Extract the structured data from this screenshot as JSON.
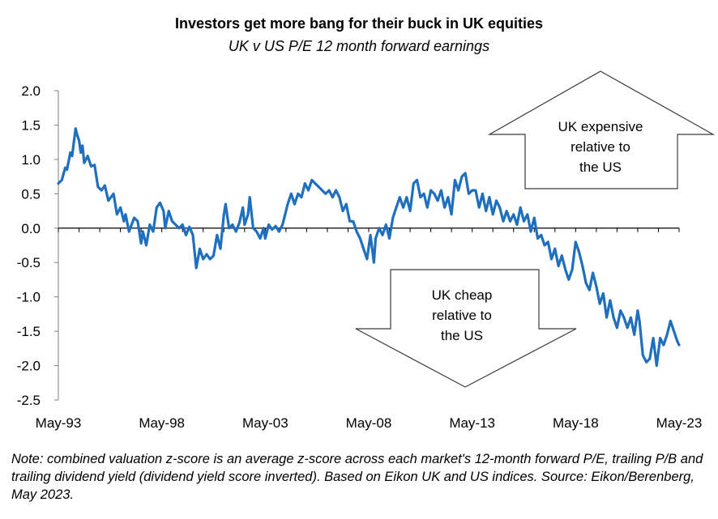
{
  "chart_data": {
    "type": "line",
    "title": "Investors get more bang for their buck in UK equities",
    "subtitle": "UK v US P/E 12 month forward earnings",
    "xlabel": "",
    "ylabel": "",
    "x_range": [
      "1993-05",
      "2023-05"
    ],
    "ylim": [
      -2.5,
      2.0
    ],
    "y_ticks": [
      "2.0",
      "1.5",
      "1.0",
      "0.5",
      "0.0",
      "-0.5",
      "-1.0",
      "-1.5",
      "-2.0",
      "-2.5"
    ],
    "y_tick_values": [
      2.0,
      1.5,
      1.0,
      0.5,
      0.0,
      -0.5,
      -1.0,
      -1.5,
      -2.0,
      -2.5
    ],
    "x_ticks": [
      "May-93",
      "May-98",
      "May-03",
      "May-08",
      "May-13",
      "May-18",
      "May-23"
    ],
    "x_tick_values": [
      "1993-05",
      "1998-05",
      "2003-05",
      "2008-05",
      "2013-05",
      "2018-05",
      "2023-05"
    ],
    "grid": false,
    "line_color": "#1f6fbf",
    "series": [
      {
        "values": [
          [
            "1993-05",
            0.65
          ],
          [
            "1993-07",
            0.7
          ],
          [
            "1993-09",
            0.88
          ],
          [
            "1993-10",
            0.85
          ],
          [
            "1993-12",
            1.1
          ],
          [
            "1994-01",
            1.05
          ],
          [
            "1994-03",
            1.45
          ],
          [
            "1994-04",
            1.35
          ],
          [
            "1994-05",
            1.28
          ],
          [
            "1994-06",
            1.1
          ],
          [
            "1994-07",
            1.2
          ],
          [
            "1994-08",
            0.95
          ],
          [
            "1994-10",
            1.05
          ],
          [
            "1994-12",
            0.9
          ],
          [
            "1995-02",
            0.92
          ],
          [
            "1995-04",
            0.6
          ],
          [
            "1995-06",
            0.55
          ],
          [
            "1995-08",
            0.62
          ],
          [
            "1995-10",
            0.4
          ],
          [
            "1996-01",
            0.5
          ],
          [
            "1996-03",
            0.2
          ],
          [
            "1996-05",
            0.3
          ],
          [
            "1996-07",
            0.1
          ],
          [
            "1996-08",
            0.2
          ],
          [
            "1996-10",
            -0.05
          ],
          [
            "1997-01",
            0.15
          ],
          [
            "1997-03",
            0.1
          ],
          [
            "1997-05",
            -0.22
          ],
          [
            "1997-06",
            -0.05
          ],
          [
            "1997-08",
            -0.25
          ],
          [
            "1997-10",
            0.05
          ],
          [
            "1997-12",
            -0.05
          ],
          [
            "1998-02",
            0.3
          ],
          [
            "1998-04",
            0.37
          ],
          [
            "1998-06",
            0.25
          ],
          [
            "1998-07",
            0.0
          ],
          [
            "1998-09",
            0.25
          ],
          [
            "1998-11",
            0.1
          ],
          [
            "1999-01",
            0.05
          ],
          [
            "1999-03",
            0.0
          ],
          [
            "1999-05",
            0.05
          ],
          [
            "1999-07",
            -0.1
          ],
          [
            "1999-09",
            0.02
          ],
          [
            "1999-11",
            -0.1
          ],
          [
            "2000-01",
            -0.58
          ],
          [
            "2000-03",
            -0.3
          ],
          [
            "2000-05",
            -0.45
          ],
          [
            "2000-07",
            -0.38
          ],
          [
            "2000-09",
            -0.45
          ],
          [
            "2000-11",
            -0.4
          ],
          [
            "2001-01",
            -0.1
          ],
          [
            "2001-03",
            -0.3
          ],
          [
            "2001-05",
            0.2
          ],
          [
            "2001-06",
            0.35
          ],
          [
            "2001-08",
            0.0
          ],
          [
            "2001-10",
            0.05
          ],
          [
            "2001-12",
            -0.05
          ],
          [
            "2002-02",
            0.08
          ],
          [
            "2002-04",
            0.3
          ],
          [
            "2002-05",
            0.05
          ],
          [
            "2002-07",
            0.2
          ],
          [
            "2002-08",
            0.45
          ],
          [
            "2002-10",
            0.0
          ],
          [
            "2002-12",
            -0.05
          ],
          [
            "2003-02",
            -0.15
          ],
          [
            "2003-04",
            0.0
          ],
          [
            "2003-05",
            -0.15
          ],
          [
            "2003-07",
            0.05
          ],
          [
            "2003-09",
            -0.02
          ],
          [
            "2003-11",
            0.03
          ],
          [
            "2004-01",
            -0.05
          ],
          [
            "2004-03",
            0.05
          ],
          [
            "2004-05",
            0.25
          ],
          [
            "2004-06",
            0.35
          ],
          [
            "2004-08",
            0.5
          ],
          [
            "2004-10",
            0.35
          ],
          [
            "2004-12",
            0.5
          ],
          [
            "2005-02",
            0.45
          ],
          [
            "2005-04",
            0.65
          ],
          [
            "2005-06",
            0.55
          ],
          [
            "2005-08",
            0.7
          ],
          [
            "2005-10",
            0.65
          ],
          [
            "2005-12",
            0.6
          ],
          [
            "2006-02",
            0.55
          ],
          [
            "2006-04",
            0.5
          ],
          [
            "2006-06",
            0.55
          ],
          [
            "2006-08",
            0.45
          ],
          [
            "2006-10",
            0.55
          ],
          [
            "2006-12",
            0.45
          ],
          [
            "2007-02",
            0.25
          ],
          [
            "2007-04",
            0.35
          ],
          [
            "2007-06",
            0.1
          ],
          [
            "2007-08",
            0.1
          ],
          [
            "2007-10",
            -0.05
          ],
          [
            "2007-12",
            -0.15
          ],
          [
            "2008-02",
            -0.3
          ],
          [
            "2008-04",
            -0.45
          ],
          [
            "2008-06",
            -0.1
          ],
          [
            "2008-08",
            -0.5
          ],
          [
            "2008-09",
            -0.15
          ],
          [
            "2008-11",
            0.0
          ],
          [
            "2009-01",
            -0.1
          ],
          [
            "2009-03",
            0.05
          ],
          [
            "2009-05",
            -0.15
          ],
          [
            "2009-07",
            0.15
          ],
          [
            "2009-09",
            0.3
          ],
          [
            "2009-11",
            0.45
          ],
          [
            "2010-01",
            0.3
          ],
          [
            "2010-03",
            0.45
          ],
          [
            "2010-05",
            0.25
          ],
          [
            "2010-07",
            0.65
          ],
          [
            "2010-09",
            0.7
          ],
          [
            "2010-11",
            0.45
          ],
          [
            "2011-01",
            0.5
          ],
          [
            "2011-03",
            0.3
          ],
          [
            "2011-05",
            0.55
          ],
          [
            "2011-07",
            0.5
          ],
          [
            "2011-09",
            0.4
          ],
          [
            "2011-11",
            0.55
          ],
          [
            "2012-01",
            0.3
          ],
          [
            "2012-03",
            0.45
          ],
          [
            "2012-05",
            0.2
          ],
          [
            "2012-07",
            0.7
          ],
          [
            "2012-09",
            0.55
          ],
          [
            "2012-11",
            0.75
          ],
          [
            "2013-01",
            0.8
          ],
          [
            "2013-03",
            0.5
          ],
          [
            "2013-05",
            0.55
          ],
          [
            "2013-07",
            0.55
          ],
          [
            "2013-09",
            0.3
          ],
          [
            "2013-11",
            0.5
          ],
          [
            "2014-01",
            0.25
          ],
          [
            "2014-03",
            0.45
          ],
          [
            "2014-05",
            0.2
          ],
          [
            "2014-07",
            0.4
          ],
          [
            "2014-09",
            0.3
          ],
          [
            "2014-11",
            0.1
          ],
          [
            "2015-01",
            0.25
          ],
          [
            "2015-03",
            0.1
          ],
          [
            "2015-05",
            0.2
          ],
          [
            "2015-07",
            0.05
          ],
          [
            "2015-09",
            0.3
          ],
          [
            "2015-11",
            0.1
          ],
          [
            "2016-01",
            0.2
          ],
          [
            "2016-03",
            -0.05
          ],
          [
            "2016-05",
            0.15
          ],
          [
            "2016-07",
            -0.15
          ],
          [
            "2016-09",
            -0.1
          ],
          [
            "2016-11",
            -0.25
          ],
          [
            "2017-01",
            -0.2
          ],
          [
            "2017-03",
            -0.45
          ],
          [
            "2017-05",
            -0.3
          ],
          [
            "2017-07",
            -0.55
          ],
          [
            "2017-09",
            -0.4
          ],
          [
            "2017-11",
            -0.6
          ],
          [
            "2018-01",
            -0.75
          ],
          [
            "2018-03",
            -0.6
          ],
          [
            "2018-05",
            -0.2
          ],
          [
            "2018-07",
            -0.35
          ],
          [
            "2018-09",
            -0.55
          ],
          [
            "2018-11",
            -0.8
          ],
          [
            "2019-01",
            -0.9
          ],
          [
            "2019-03",
            -0.65
          ],
          [
            "2019-05",
            -0.85
          ],
          [
            "2019-07",
            -1.1
          ],
          [
            "2019-09",
            -0.95
          ],
          [
            "2019-11",
            -1.3
          ],
          [
            "2020-01",
            -1.05
          ],
          [
            "2020-03",
            -1.3
          ],
          [
            "2020-05",
            -1.45
          ],
          [
            "2020-07",
            -1.2
          ],
          [
            "2020-09",
            -1.3
          ],
          [
            "2020-11",
            -1.45
          ],
          [
            "2021-01",
            -1.3
          ],
          [
            "2021-03",
            -1.55
          ],
          [
            "2021-05",
            -1.2
          ],
          [
            "2021-06",
            -1.35
          ],
          [
            "2021-08",
            -1.85
          ],
          [
            "2021-10",
            -1.95
          ],
          [
            "2021-12",
            -1.9
          ],
          [
            "2022-02",
            -1.6
          ],
          [
            "2022-04",
            -2.0
          ],
          [
            "2022-06",
            -1.6
          ],
          [
            "2022-08",
            -1.7
          ],
          [
            "2022-10",
            -1.55
          ],
          [
            "2022-12",
            -1.35
          ],
          [
            "2023-02",
            -1.5
          ],
          [
            "2023-04",
            -1.65
          ],
          [
            "2023-05",
            -1.7
          ]
        ]
      }
    ],
    "annotations": [
      {
        "name": "uk-expensive",
        "direction": "up",
        "lines": [
          "UK expensive",
          "relative to",
          "the US"
        ]
      },
      {
        "name": "uk-cheap",
        "direction": "down",
        "lines": [
          "UK cheap",
          "relative to",
          "the US"
        ]
      }
    ]
  },
  "note": "Note: combined valuation z-score is an average z-score across each market's 12-month forward P/E, trailing P/B and trailing dividend yield (dividend yield score inverted). Based on Eikon UK and US indices. Source: Eikon/Berenberg, May 2023."
}
